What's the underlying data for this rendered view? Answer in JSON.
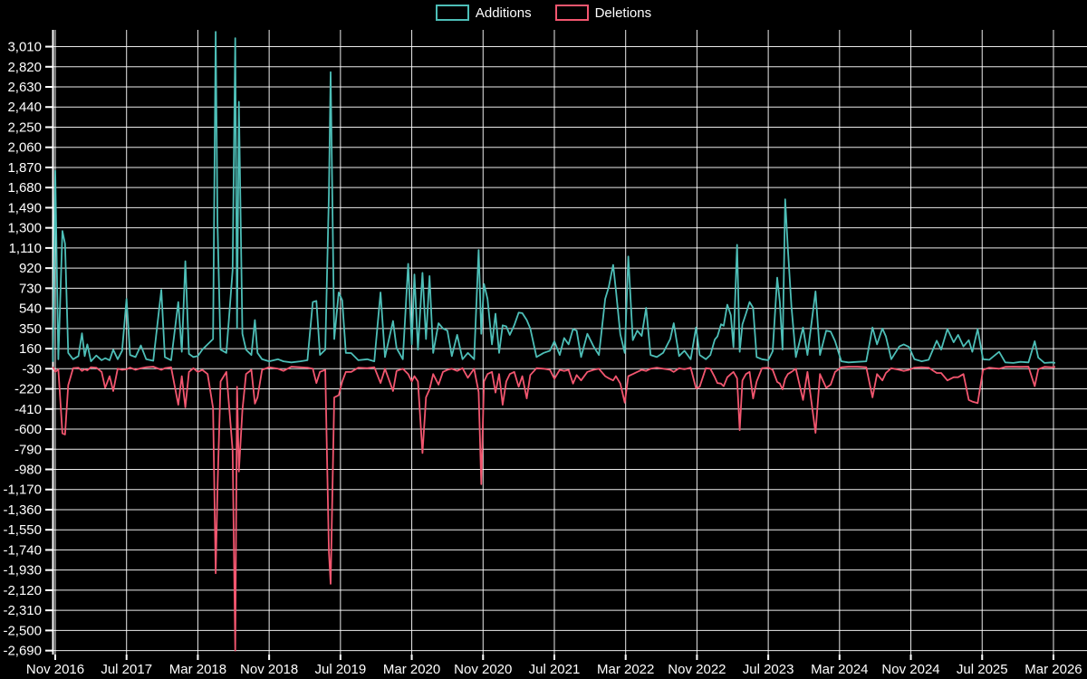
{
  "chart_data": {
    "type": "line",
    "title": "",
    "legend_position": "top",
    "grid": true,
    "background": "#000000",
    "grid_color": "#ffffff",
    "text_color": "#ffffff",
    "x_unit": "months_since_Nov_2016",
    "x_axis": {
      "tick_months": [
        0,
        8,
        16,
        24,
        32,
        40,
        48,
        56,
        64,
        72,
        80,
        88,
        96,
        104,
        112
      ],
      "tick_labels": [
        "Nov 2016",
        "Jul 2017",
        "Mar 2018",
        "Nov 2018",
        "Jul 2019",
        "Mar 2020",
        "Nov 2020",
        "Jul 2021",
        "Mar 2022",
        "Nov 2022",
        "Jul 2023",
        "Mar 2024",
        "Nov 2024",
        "Jul 2025",
        "Mar 2026"
      ]
    },
    "y_axis": {
      "tick_step": 190,
      "ticks": [
        3010,
        2820,
        2630,
        2440,
        2250,
        2060,
        1870,
        1680,
        1490,
        1300,
        1110,
        920,
        730,
        540,
        350,
        160,
        -30,
        -220,
        -410,
        -600,
        -790,
        -980,
        -1170,
        -1360,
        -1550,
        -1740,
        -1930,
        -2120,
        -2310,
        -2500,
        -2690
      ]
    },
    "ylim": [
      -2730,
      3170
    ],
    "xlim_months": [
      -0.4,
      112.4
    ],
    "series": [
      {
        "name": "Additions",
        "color": "#4DBEB7"
      },
      {
        "name": "Deletions",
        "color": "#F2566F"
      }
    ],
    "points_format": [
      "month_offset",
      "additions",
      "deletions"
    ],
    "points": [
      [
        -0.25,
        35,
        -12
      ],
      [
        0,
        1840,
        -60
      ],
      [
        0.35,
        60,
        -35
      ],
      [
        0.8,
        1270,
        -640
      ],
      [
        1.1,
        1150,
        -650
      ],
      [
        1.45,
        120,
        -185
      ],
      [
        2,
        60,
        -25
      ],
      [
        2.6,
        90,
        -20
      ],
      [
        3,
        305,
        -50
      ],
      [
        3.3,
        90,
        -35
      ],
      [
        3.6,
        200,
        -45
      ],
      [
        4,
        40,
        -15
      ],
      [
        4.6,
        95,
        -20
      ],
      [
        5.2,
        50,
        -60
      ],
      [
        5.6,
        70,
        -210
      ],
      [
        6.1,
        50,
        -100
      ],
      [
        6.5,
        150,
        -240
      ],
      [
        7,
        60,
        -30
      ],
      [
        7.5,
        140,
        -40
      ],
      [
        8,
        630,
        -35
      ],
      [
        8.4,
        100,
        -20
      ],
      [
        9,
        80,
        -40
      ],
      [
        9.6,
        190,
        -25
      ],
      [
        10.2,
        60,
        -15
      ],
      [
        11,
        45,
        -10
      ],
      [
        11.9,
        715,
        -40
      ],
      [
        12.3,
        80,
        -25
      ],
      [
        13,
        50,
        -15
      ],
      [
        13.8,
        600,
        -370
      ],
      [
        14.2,
        130,
        -100
      ],
      [
        14.6,
        985,
        -395
      ],
      [
        15,
        110,
        -60
      ],
      [
        15.5,
        80,
        -25
      ],
      [
        16,
        90,
        -60
      ],
      [
        16.5,
        150,
        -40
      ],
      [
        17.1,
        200,
        -80
      ],
      [
        17.7,
        250,
        -400
      ],
      [
        18,
        3150,
        -1960
      ],
      [
        18.2,
        1350,
        -1170
      ],
      [
        18.55,
        150,
        -150
      ],
      [
        19.2,
        120,
        -60
      ],
      [
        19.9,
        900,
        -800
      ],
      [
        20.2,
        3090,
        -2690
      ],
      [
        20.4,
        350,
        -200
      ],
      [
        20.6,
        2490,
        -1000
      ],
      [
        21,
        300,
        -420
      ],
      [
        21.4,
        150,
        -80
      ],
      [
        22,
        100,
        -40
      ],
      [
        22.4,
        430,
        -360
      ],
      [
        22.7,
        120,
        -300
      ],
      [
        23.2,
        60,
        -40
      ],
      [
        24,
        40,
        -15
      ],
      [
        25,
        60,
        -30
      ],
      [
        25.6,
        40,
        -50
      ],
      [
        26.5,
        30,
        -10
      ],
      [
        27.5,
        40,
        -15
      ],
      [
        28.3,
        50,
        -20
      ],
      [
        28.9,
        600,
        -30
      ],
      [
        29.3,
        610,
        -165
      ],
      [
        29.7,
        100,
        -60
      ],
      [
        30.3,
        150,
        -40
      ],
      [
        30.7,
        1620,
        -1760
      ],
      [
        30.9,
        2770,
        -2060
      ],
      [
        31.3,
        250,
        -300
      ],
      [
        31.8,
        690,
        -280
      ],
      [
        32.2,
        615,
        -150
      ],
      [
        32.6,
        120,
        -60
      ],
      [
        33.2,
        118,
        -60
      ],
      [
        34,
        50,
        -20
      ],
      [
        35,
        60,
        -25
      ],
      [
        35.8,
        40,
        -15
      ],
      [
        36.5,
        690,
        -165
      ],
      [
        37,
        80,
        -30
      ],
      [
        37.9,
        420,
        -240
      ],
      [
        38.3,
        165,
        -50
      ],
      [
        39,
        60,
        -30
      ],
      [
        39.6,
        960,
        -80
      ],
      [
        40,
        200,
        -150
      ],
      [
        40.3,
        860,
        -100
      ],
      [
        40.7,
        150,
        -150
      ],
      [
        41.2,
        875,
        -825
      ],
      [
        41.6,
        250,
        -300
      ],
      [
        42,
        845,
        -225
      ],
      [
        42.4,
        120,
        -80
      ],
      [
        43,
        400,
        -180
      ],
      [
        43.5,
        350,
        -60
      ],
      [
        44,
        330,
        -40
      ],
      [
        44.5,
        90,
        -30
      ],
      [
        45.1,
        290,
        -50
      ],
      [
        45.7,
        60,
        -25
      ],
      [
        46.3,
        120,
        -115
      ],
      [
        47,
        60,
        -30
      ],
      [
        47.5,
        1090,
        -250
      ],
      [
        47.8,
        300,
        -1120
      ],
      [
        48.1,
        770,
        -150
      ],
      [
        48.5,
        630,
        -80
      ],
      [
        49,
        200,
        -60
      ],
      [
        49.4,
        490,
        -255
      ],
      [
        49.8,
        120,
        -80
      ],
      [
        50.2,
        380,
        -370
      ],
      [
        50.6,
        370,
        -150
      ],
      [
        51,
        290,
        -80
      ],
      [
        51.5,
        380,
        -60
      ],
      [
        52,
        500,
        -200
      ],
      [
        52.4,
        495,
        -100
      ],
      [
        52.9,
        430,
        -310
      ],
      [
        53.3,
        350,
        -90
      ],
      [
        54,
        80,
        -25
      ],
      [
        54.8,
        120,
        -30
      ],
      [
        55.5,
        140,
        -40
      ],
      [
        56,
        230,
        -125
      ],
      [
        56.6,
        100,
        -40
      ],
      [
        57.1,
        260,
        -50
      ],
      [
        57.6,
        200,
        -40
      ],
      [
        58.1,
        345,
        -170
      ],
      [
        58.5,
        330,
        -90
      ],
      [
        59,
        80,
        -140
      ],
      [
        59.7,
        300,
        -60
      ],
      [
        60.4,
        180,
        -40
      ],
      [
        61,
        100,
        -30
      ],
      [
        61.7,
        630,
        -100
      ],
      [
        62.1,
        740,
        -120
      ],
      [
        62.6,
        950,
        -140
      ],
      [
        62.9,
        715,
        -100
      ],
      [
        63.4,
        295,
        -170
      ],
      [
        63.9,
        120,
        -350
      ],
      [
        64.3,
        1030,
        -100
      ],
      [
        64.8,
        240,
        -80
      ],
      [
        65.3,
        330,
        -60
      ],
      [
        65.8,
        280,
        -40
      ],
      [
        66.3,
        545,
        -50
      ],
      [
        66.8,
        100,
        -30
      ],
      [
        67.5,
        80,
        -20
      ],
      [
        68.2,
        120,
        -30
      ],
      [
        69,
        250,
        -40
      ],
      [
        69.4,
        400,
        -60
      ],
      [
        70,
        90,
        -25
      ],
      [
        70.6,
        140,
        -35
      ],
      [
        71.3,
        60,
        -20
      ],
      [
        71.9,
        360,
        -215
      ],
      [
        72.3,
        100,
        -200
      ],
      [
        73,
        60,
        -25
      ],
      [
        73.5,
        100,
        -30
      ],
      [
        74,
        245,
        -110
      ],
      [
        74.3,
        275,
        -165
      ],
      [
        74.7,
        390,
        -170
      ],
      [
        75,
        375,
        -195
      ],
      [
        75.4,
        575,
        -110
      ],
      [
        75.8,
        475,
        -80
      ],
      [
        76.1,
        175,
        -60
      ],
      [
        76.5,
        1140,
        -120
      ],
      [
        76.8,
        130,
        -610
      ],
      [
        77.1,
        390,
        -140
      ],
      [
        77.5,
        490,
        -80
      ],
      [
        77.9,
        600,
        -60
      ],
      [
        78.3,
        545,
        -310
      ],
      [
        78.7,
        80,
        -150
      ],
      [
        79.3,
        60,
        -25
      ],
      [
        80,
        50,
        -20
      ],
      [
        80.5,
        135,
        -40
      ],
      [
        81,
        830,
        -155
      ],
      [
        81.3,
        600,
        -170
      ],
      [
        81.6,
        150,
        -225
      ],
      [
        81.9,
        1570,
        -125
      ],
      [
        82.2,
        1100,
        -80
      ],
      [
        82.6,
        560,
        -60
      ],
      [
        83.1,
        80,
        -30
      ],
      [
        83.9,
        360,
        -325
      ],
      [
        84.4,
        100,
        -60
      ],
      [
        85.3,
        700,
        -635
      ],
      [
        85.8,
        100,
        -80
      ],
      [
        86.5,
        330,
        -210
      ],
      [
        87,
        320,
        -180
      ],
      [
        87.5,
        230,
        -60
      ],
      [
        88.2,
        40,
        -15
      ],
      [
        89,
        30,
        -10
      ],
      [
        90,
        35,
        -10
      ],
      [
        91,
        40,
        -15
      ],
      [
        91.7,
        360,
        -300
      ],
      [
        92.2,
        200,
        -80
      ],
      [
        92.8,
        350,
        -140
      ],
      [
        93.2,
        275,
        -70
      ],
      [
        93.8,
        60,
        -25
      ],
      [
        94.7,
        180,
        -40
      ],
      [
        95.2,
        200,
        -50
      ],
      [
        95.8,
        175,
        -40
      ],
      [
        96.4,
        60,
        -20
      ],
      [
        97.2,
        40,
        -15
      ],
      [
        98,
        55,
        -20
      ],
      [
        98.9,
        235,
        -70
      ],
      [
        99.4,
        150,
        -70
      ],
      [
        100.1,
        345,
        -140
      ],
      [
        100.8,
        220,
        -110
      ],
      [
        101.3,
        290,
        -110
      ],
      [
        101.9,
        180,
        -80
      ],
      [
        102.5,
        240,
        -325
      ],
      [
        102.9,
        130,
        -340
      ],
      [
        103.5,
        345,
        -355
      ],
      [
        104.1,
        60,
        -40
      ],
      [
        104.8,
        55,
        -20
      ],
      [
        105.9,
        130,
        -30
      ],
      [
        106.6,
        30,
        -12
      ],
      [
        107.5,
        25,
        -10
      ],
      [
        108.3,
        35,
        -12
      ],
      [
        109.2,
        30,
        -10
      ],
      [
        109.9,
        230,
        -195
      ],
      [
        110.3,
        75,
        -35
      ],
      [
        111,
        25,
        -12
      ],
      [
        111.8,
        30,
        -15
      ],
      [
        112.2,
        25,
        -12
      ]
    ]
  }
}
